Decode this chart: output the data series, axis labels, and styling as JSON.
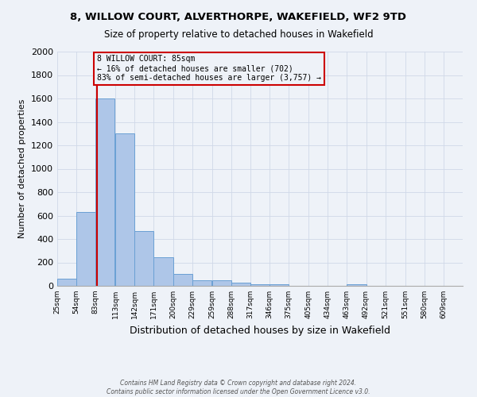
{
  "title1": "8, WILLOW COURT, ALVERTHORPE, WAKEFIELD, WF2 9TD",
  "title2": "Size of property relative to detached houses in Wakefield",
  "xlabel": "Distribution of detached houses by size in Wakefield",
  "ylabel": "Number of detached properties",
  "bar_left_edges": [
    25,
    54,
    83,
    113,
    142,
    171,
    200,
    229,
    259,
    288,
    317,
    346,
    375,
    405,
    434,
    463,
    492,
    521,
    551,
    580
  ],
  "bar_heights": [
    60,
    630,
    1600,
    1300,
    470,
    245,
    100,
    50,
    45,
    25,
    15,
    12,
    0,
    0,
    0,
    15,
    0,
    0,
    0,
    0
  ],
  "bin_width": 29,
  "bar_color": "#aec6e8",
  "bar_edgecolor": "#6aa0d4",
  "property_size": 85,
  "property_line_color": "#cc0000",
  "ylim": [
    0,
    2000
  ],
  "yticks": [
    0,
    200,
    400,
    600,
    800,
    1000,
    1200,
    1400,
    1600,
    1800,
    2000
  ],
  "xtick_labels": [
    "25sqm",
    "54sqm",
    "83sqm",
    "113sqm",
    "142sqm",
    "171sqm",
    "200sqm",
    "229sqm",
    "259sqm",
    "288sqm",
    "317sqm",
    "346sqm",
    "375sqm",
    "405sqm",
    "434sqm",
    "463sqm",
    "492sqm",
    "521sqm",
    "551sqm",
    "580sqm",
    "609sqm"
  ],
  "xtick_positions": [
    25,
    54,
    83,
    113,
    142,
    171,
    200,
    229,
    259,
    288,
    317,
    346,
    375,
    405,
    434,
    463,
    492,
    521,
    551,
    580,
    609
  ],
  "annotation_box_text": [
    "8 WILLOW COURT: 85sqm",
    "← 16% of detached houses are smaller (702)",
    "83% of semi-detached houses are larger (3,757) →"
  ],
  "footer1": "Contains HM Land Registry data © Crown copyright and database right 2024.",
  "footer2": "Contains public sector information licensed under the Open Government Licence v3.0.",
  "grid_color": "#d0d8e8",
  "background_color": "#eef2f8"
}
